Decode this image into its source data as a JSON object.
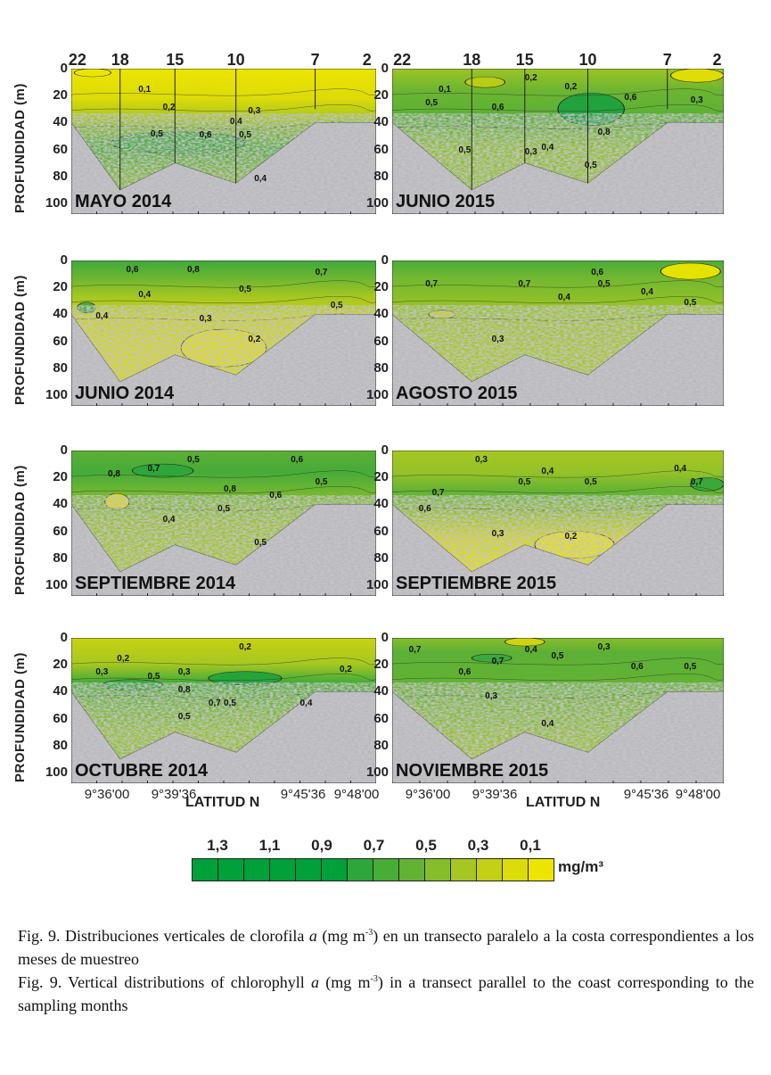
{
  "y_axis": {
    "label": "PROFUNDIDAD (m)",
    "ticks": [
      "0",
      "20",
      "40",
      "60",
      "80",
      "100"
    ]
  },
  "stations": [
    "22",
    "18",
    "15",
    "10",
    "7",
    "2"
  ],
  "x_axis": {
    "label": "LATITUD N",
    "ticks": [
      "9°36'00",
      "9°39'36",
      "9°45'36",
      "9°48'00"
    ]
  },
  "panels": [
    {
      "month": "MAYO 2014",
      "contours": [
        "0,1",
        "0,2",
        "0,3",
        "0,4",
        "0,5",
        "0,6",
        "0,5",
        "0,4"
      ]
    },
    {
      "month": "JUNIO 2015",
      "contours": [
        "0,1",
        "0,2",
        "0,5",
        "0,6",
        "0,8",
        "0,2",
        "0,3",
        "0,5",
        "0,3",
        "0,4",
        "0,5",
        "0,6"
      ]
    },
    {
      "month": "JUNIO 2014",
      "contours": [
        "0,6",
        "0,8",
        "0,7",
        "0,4",
        "0,5",
        "0,3",
        "0,2",
        "0,5",
        "0,4"
      ]
    },
    {
      "month": "AGOSTO 2015",
      "contours": [
        "0,7",
        "0,7",
        "0,5",
        "0,4",
        "0,4",
        "0,3",
        "0,5",
        "0,6"
      ]
    },
    {
      "month": "SEPTIEMBRE 2014",
      "contours": [
        "0,8",
        "0,7",
        "0,5",
        "0,8",
        "0,6",
        "0,5",
        "0,4",
        "0,5",
        "0,6",
        "0,5"
      ]
    },
    {
      "month": "SEPTIEMBRE 2015",
      "contours": [
        "0,3",
        "0,4",
        "0,7",
        "0,6",
        "0,5",
        "0,5",
        "0,3",
        "0,2",
        "0,4",
        "0,7"
      ]
    },
    {
      "month": "OCTUBRE 2014",
      "contours": [
        "0,2",
        "0,3",
        "0,2",
        "0,5",
        "0,3",
        "0,8",
        "0,7",
        "0,5",
        "0,5",
        "0,4",
        "0,2"
      ]
    },
    {
      "month": "NOVIEMBRE 2015",
      "contours": [
        "0,7",
        "0,7",
        "0,4",
        "0,5",
        "0,3",
        "0,6",
        "0,6",
        "0,5",
        "0,3",
        "0,4"
      ]
    }
  ],
  "legend": {
    "labels": [
      "1,3",
      "1,1",
      "0,9",
      "0,7",
      "0,5",
      "0,3",
      "0,1"
    ],
    "unit": "mg/m³",
    "colors": [
      "#00a03a",
      "#00a03a",
      "#00a03a",
      "#00a03a",
      "#00a03a",
      "#00a03a",
      "#2ea73a",
      "#48ad37",
      "#62b334",
      "#86bd2b",
      "#a6c721",
      "#c4d014",
      "#dcdc08",
      "#ede500"
    ]
  },
  "caption": {
    "es": {
      "pre": "Fig. 9. Distribuciones verticales de clorofila ",
      "italic": "a",
      "mid": " (mg m",
      "sup": "-3",
      "post": ") en un transecto paralelo a la costa correspondientes a los meses de muestreo"
    },
    "en": {
      "pre": "Fig. 9. Vertical distributions of chlorophyll ",
      "italic": "a",
      "mid": " (mg m",
      "sup": "-3",
      "post": ") in a transect parallel to the coast corresponding to the sampling months"
    }
  }
}
